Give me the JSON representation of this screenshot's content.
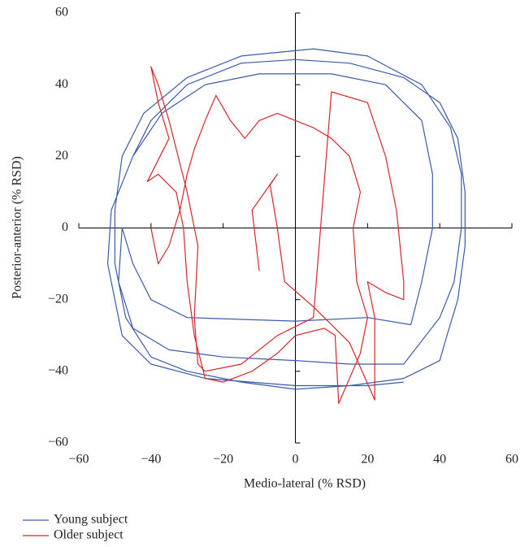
{
  "chart_data": {
    "type": "line",
    "x_label": "Medio-lateral (% RSD)",
    "y_label": "Posterior-anterior (% RSD)",
    "xlim": [
      -60,
      60
    ],
    "ylim": [
      -60,
      60
    ],
    "xticks": [
      {
        "value": -60,
        "label": "−60"
      },
      {
        "value": -40,
        "label": "−40"
      },
      {
        "value": -20,
        "label": "−20"
      },
      0,
      20,
      40,
      60
    ],
    "yticks": [
      {
        "value": -60,
        "label": "−60"
      },
      {
        "value": -40,
        "label": "−40"
      },
      {
        "value": -20,
        "label": "−20"
      },
      0,
      20,
      40,
      60
    ],
    "series": [
      {
        "name": "Young subject",
        "color": "#3a5ba9",
        "x": [
          -45,
          -40,
          -30,
          -15,
          0,
          15,
          30,
          40,
          45,
          47,
          47,
          45,
          42,
          40,
          30,
          15,
          0,
          -15,
          -30,
          -40,
          -47,
          -50,
          -50,
          -48,
          -42,
          -30,
          -15,
          5,
          20,
          35,
          43,
          46,
          46,
          44,
          40,
          30,
          15,
          0,
          -20,
          -35,
          -45,
          -49,
          -48,
          -45,
          -40,
          -30,
          0,
          20,
          32,
          35,
          38,
          38,
          35,
          25,
          10,
          -10,
          -25,
          -37,
          -45,
          -51,
          -52,
          -48,
          -40,
          -25,
          0,
          20,
          30
        ],
        "values": [
          20,
          30,
          40,
          46,
          47,
          46,
          42,
          35,
          25,
          10,
          -5,
          -20,
          -30,
          -37,
          -42,
          -44,
          -45,
          -43,
          -40,
          -36,
          -25,
          -10,
          5,
          20,
          32,
          42,
          48,
          50,
          48,
          40,
          28,
          15,
          0,
          -15,
          -25,
          -38,
          -38,
          -37,
          -36,
          -34,
          -28,
          -15,
          0,
          -10,
          -20,
          -25,
          -26,
          -25,
          -27,
          -15,
          0,
          15,
          30,
          40,
          43,
          43,
          40,
          32,
          20,
          5,
          -10,
          -30,
          -38,
          -42,
          -44,
          -44,
          -43
        ]
      },
      {
        "name": "Older subject",
        "color": "#d7262b",
        "x": [
          -40,
          -38,
          -35,
          -32,
          -30,
          -28,
          -25,
          -22,
          -18,
          -14,
          -10,
          -5,
          0,
          5,
          10,
          15,
          18,
          16,
          17,
          20,
          18,
          12,
          11,
          8,
          0,
          -5,
          -12,
          -20,
          -25,
          -28,
          -30,
          -31,
          -33,
          -38,
          -41,
          -35,
          -38,
          -40,
          -38,
          -35,
          -30,
          -27,
          -28,
          -27,
          -25,
          -15,
          -5,
          5,
          10,
          20,
          25,
          28,
          30,
          30,
          25,
          20,
          22,
          22,
          15,
          5,
          -3,
          -5,
          -7,
          -5,
          -12,
          -10
        ],
        "values": [
          0,
          -10,
          -5,
          5,
          15,
          22,
          30,
          37,
          30,
          25,
          30,
          32,
          30,
          28,
          25,
          20,
          10,
          0,
          -15,
          -25,
          -35,
          -49,
          -30,
          -28,
          -30,
          -35,
          -40,
          -43,
          -42,
          -30,
          -15,
          0,
          10,
          15,
          13,
          25,
          35,
          45,
          40,
          30,
          10,
          -5,
          -25,
          -38,
          -40,
          -38,
          -30,
          -25,
          38,
          35,
          20,
          5,
          -15,
          -20,
          -18,
          -15,
          -25,
          -48,
          -32,
          -22,
          -15,
          0,
          12,
          15,
          5,
          -12
        ]
      }
    ]
  }
}
